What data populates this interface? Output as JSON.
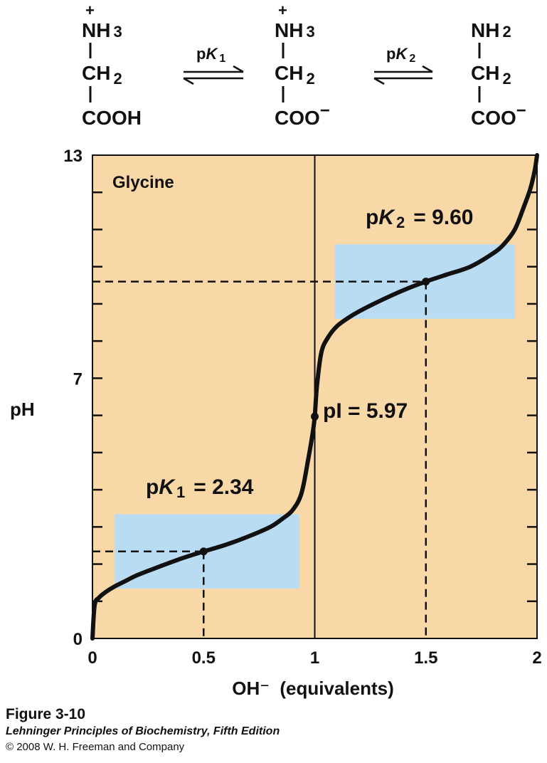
{
  "structures": [
    {
      "top": "NH",
      "sub": "3",
      "charge": "+",
      "mid": "CH",
      "midsub": "2",
      "bottom": "COOH",
      "bottomcharge": ""
    },
    {
      "top": "NH",
      "sub": "3",
      "charge": "+",
      "mid": "CH",
      "midsub": "2",
      "bottom": "COO",
      "bottomcharge": "−"
    },
    {
      "top": "NH",
      "sub": "2",
      "charge": "",
      "mid": "CH",
      "midsub": "2",
      "bottom": "COO",
      "bottomcharge": "−"
    }
  ],
  "equilibria": [
    {
      "p": "p",
      "k": "K",
      "sub": "1"
    },
    {
      "p": "p",
      "k": "K",
      "sub": "2"
    }
  ],
  "chart_data": {
    "type": "line",
    "title": "Glycine",
    "xlabel": "OH⁻  (equivalents)",
    "ylabel": "pH",
    "xlim": [
      0,
      2
    ],
    "ylim": [
      0,
      13
    ],
    "x_ticks": [
      "0",
      "0.5",
      "1",
      "1.5",
      "2"
    ],
    "y_ticks": [
      "0",
      "7",
      "13"
    ],
    "series": [
      {
        "x": [
          0.0,
          0.01,
          0.03,
          0.06,
          0.1,
          0.15,
          0.2,
          0.3,
          0.4,
          0.5,
          0.6,
          0.7,
          0.8,
          0.85,
          0.9,
          0.94,
          0.97,
          0.99,
          1.0,
          1.01,
          1.03,
          1.06,
          1.1,
          1.15,
          1.2,
          1.3,
          1.4,
          1.5,
          1.6,
          1.7,
          1.8,
          1.85,
          1.9,
          1.94,
          1.97,
          1.99,
          2.0
        ],
        "y": [
          0.0,
          0.9,
          1.1,
          1.25,
          1.4,
          1.55,
          1.7,
          1.93,
          2.15,
          2.34,
          2.52,
          2.74,
          3.0,
          3.2,
          3.45,
          3.9,
          4.8,
          5.5,
          5.97,
          6.8,
          7.7,
          8.1,
          8.4,
          8.62,
          8.8,
          9.1,
          9.37,
          9.6,
          9.8,
          10.0,
          10.35,
          10.6,
          11.0,
          11.6,
          12.1,
          12.6,
          13.0
        ]
      }
    ],
    "points": [
      {
        "x": 0.5,
        "y": 2.34
      },
      {
        "x": 1.0,
        "y": 5.97
      },
      {
        "x": 1.5,
        "y": 9.6
      }
    ],
    "buffer_regions": [
      {
        "x0": 0.1,
        "x1": 0.93,
        "y0": 1.34,
        "y1": 3.34
      },
      {
        "x0": 1.09,
        "x1": 1.9,
        "y0": 8.6,
        "y1": 10.6
      }
    ],
    "annotations": {
      "pk1": {
        "p": "p",
        "k": "K",
        "sub": "1",
        "eq": "= 2.34"
      },
      "pk2": {
        "p": "p",
        "k": "K",
        "sub": "2",
        "eq": "= 9.60"
      },
      "pi": "pI = 5.97"
    },
    "grid": false,
    "colors": {
      "background": "#F9D8A8",
      "buffer": "#B9DCF2",
      "curve": "#111111"
    }
  },
  "caption": {
    "figure": "Figure 3-10",
    "book": "Lehninger Principles of Biochemistry, Fifth Edition",
    "copyright": "© 2008 W. H. Freeman and Company"
  }
}
